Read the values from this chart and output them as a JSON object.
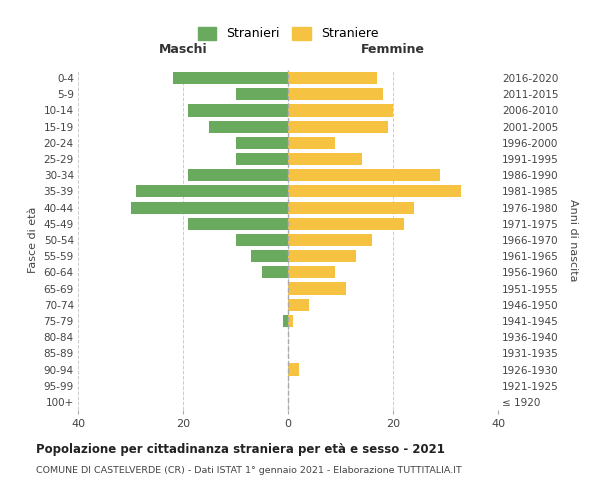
{
  "age_groups": [
    "100+",
    "95-99",
    "90-94",
    "85-89",
    "80-84",
    "75-79",
    "70-74",
    "65-69",
    "60-64",
    "55-59",
    "50-54",
    "45-49",
    "40-44",
    "35-39",
    "30-34",
    "25-29",
    "20-24",
    "15-19",
    "10-14",
    "5-9",
    "0-4"
  ],
  "birth_years": [
    "≤ 1920",
    "1921-1925",
    "1926-1930",
    "1931-1935",
    "1936-1940",
    "1941-1945",
    "1946-1950",
    "1951-1955",
    "1956-1960",
    "1961-1965",
    "1966-1970",
    "1971-1975",
    "1976-1980",
    "1981-1985",
    "1986-1990",
    "1991-1995",
    "1996-2000",
    "2001-2005",
    "2006-2010",
    "2011-2015",
    "2016-2020"
  ],
  "males": [
    0,
    0,
    0,
    0,
    0,
    1,
    0,
    0,
    5,
    7,
    10,
    19,
    30,
    29,
    19,
    10,
    10,
    15,
    19,
    10,
    22
  ],
  "females": [
    0,
    0,
    2,
    0,
    0,
    1,
    4,
    11,
    9,
    13,
    16,
    22,
    24,
    33,
    29,
    14,
    9,
    19,
    20,
    18,
    17
  ],
  "male_color": "#6aaa5e",
  "female_color": "#f5c242",
  "background_color": "#ffffff",
  "grid_color": "#cccccc",
  "title": "Popolazione per cittadinanza straniera per età e sesso - 2021",
  "subtitle": "COMUNE DI CASTELVERDE (CR) - Dati ISTAT 1° gennaio 2021 - Elaborazione TUTTITALIA.IT",
  "xlabel_left": "Maschi",
  "xlabel_right": "Femmine",
  "ylabel_left": "Fasce di età",
  "ylabel_right": "Anni di nascita",
  "legend_male": "Stranieri",
  "legend_female": "Straniere",
  "xlim": 40
}
